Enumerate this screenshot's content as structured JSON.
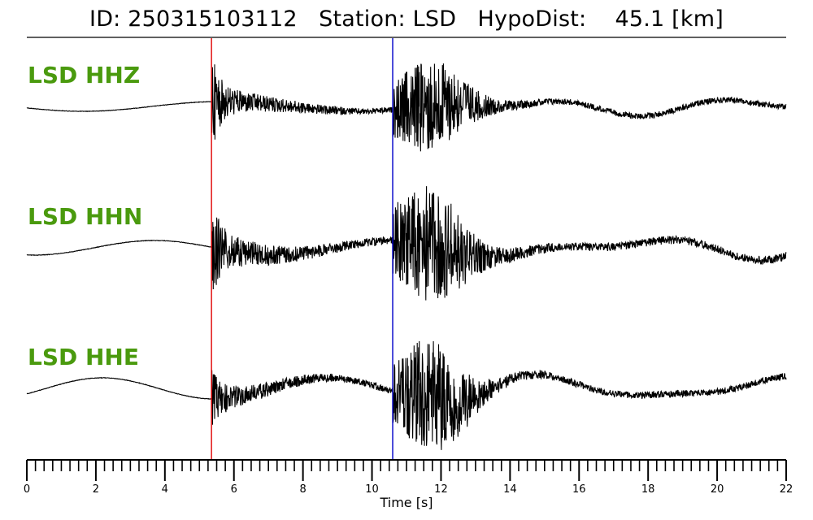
{
  "header": {
    "title": "ID: 250315103112   Station: LSD   HypoDist:    45.1 [km]"
  },
  "chart_data": {
    "type": "line",
    "title": "ID: 250315103112   Station: LSD   HypoDist:    45.1 [km]",
    "xlabel": "Time [s]",
    "ylabel": "",
    "xlim": [
      0,
      22
    ],
    "x_ticks": [
      0,
      2,
      4,
      6,
      8,
      10,
      12,
      14,
      16,
      18,
      20,
      22
    ],
    "minor_tick_step": 0.25,
    "series": [
      {
        "name": "LSD HHZ",
        "color": "#000000"
      },
      {
        "name": "LSD HHN",
        "color": "#000000"
      },
      {
        "name": "LSD HHE",
        "color": "#000000"
      }
    ],
    "markers": [
      {
        "time": 5.35,
        "color": "#e00000"
      },
      {
        "time": 10.6,
        "color": "#0000c8"
      }
    ],
    "label_color": "#4a9a0e"
  }
}
